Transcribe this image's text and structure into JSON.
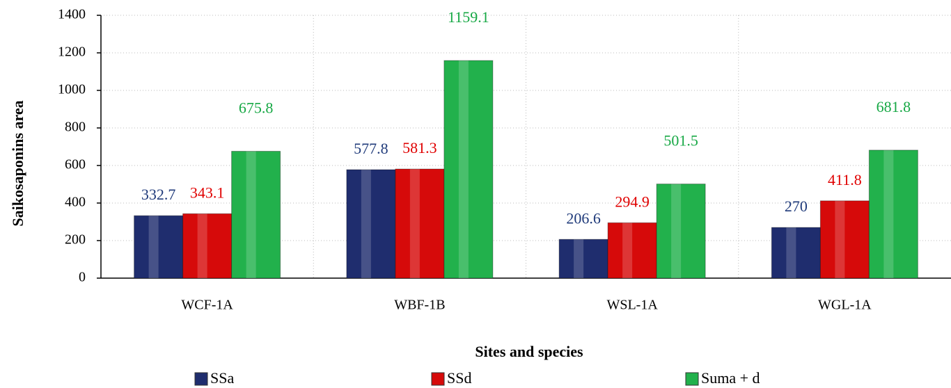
{
  "chart_data": {
    "type": "bar",
    "x_label": "Sites and species",
    "y_label": "Saikosaponins area",
    "categories": [
      "WCF-1A",
      "WBF-1B",
      "WSL-1A",
      "WGL-1A"
    ],
    "series": [
      {
        "name": "SSa",
        "color": "#1f2d6e",
        "label_color": "#1f3a7a",
        "values": [
          332.7,
          577.8,
          206.6,
          270
        ]
      },
      {
        "name": "SSd",
        "color": "#d60a0a",
        "label_color": "#e00000",
        "values": [
          343.1,
          581.3,
          294.9,
          411.8
        ]
      },
      {
        "name": "Suma + d",
        "color": "#22b14c",
        "label_color": "#17a845",
        "values": [
          675.8,
          1159.1,
          501.5,
          681.8
        ]
      }
    ],
    "ylim": [
      0,
      1400
    ],
    "yticks": [
      0,
      200,
      400,
      600,
      800,
      1000,
      1200,
      1400
    ],
    "grid": true,
    "legend": "bottom"
  }
}
